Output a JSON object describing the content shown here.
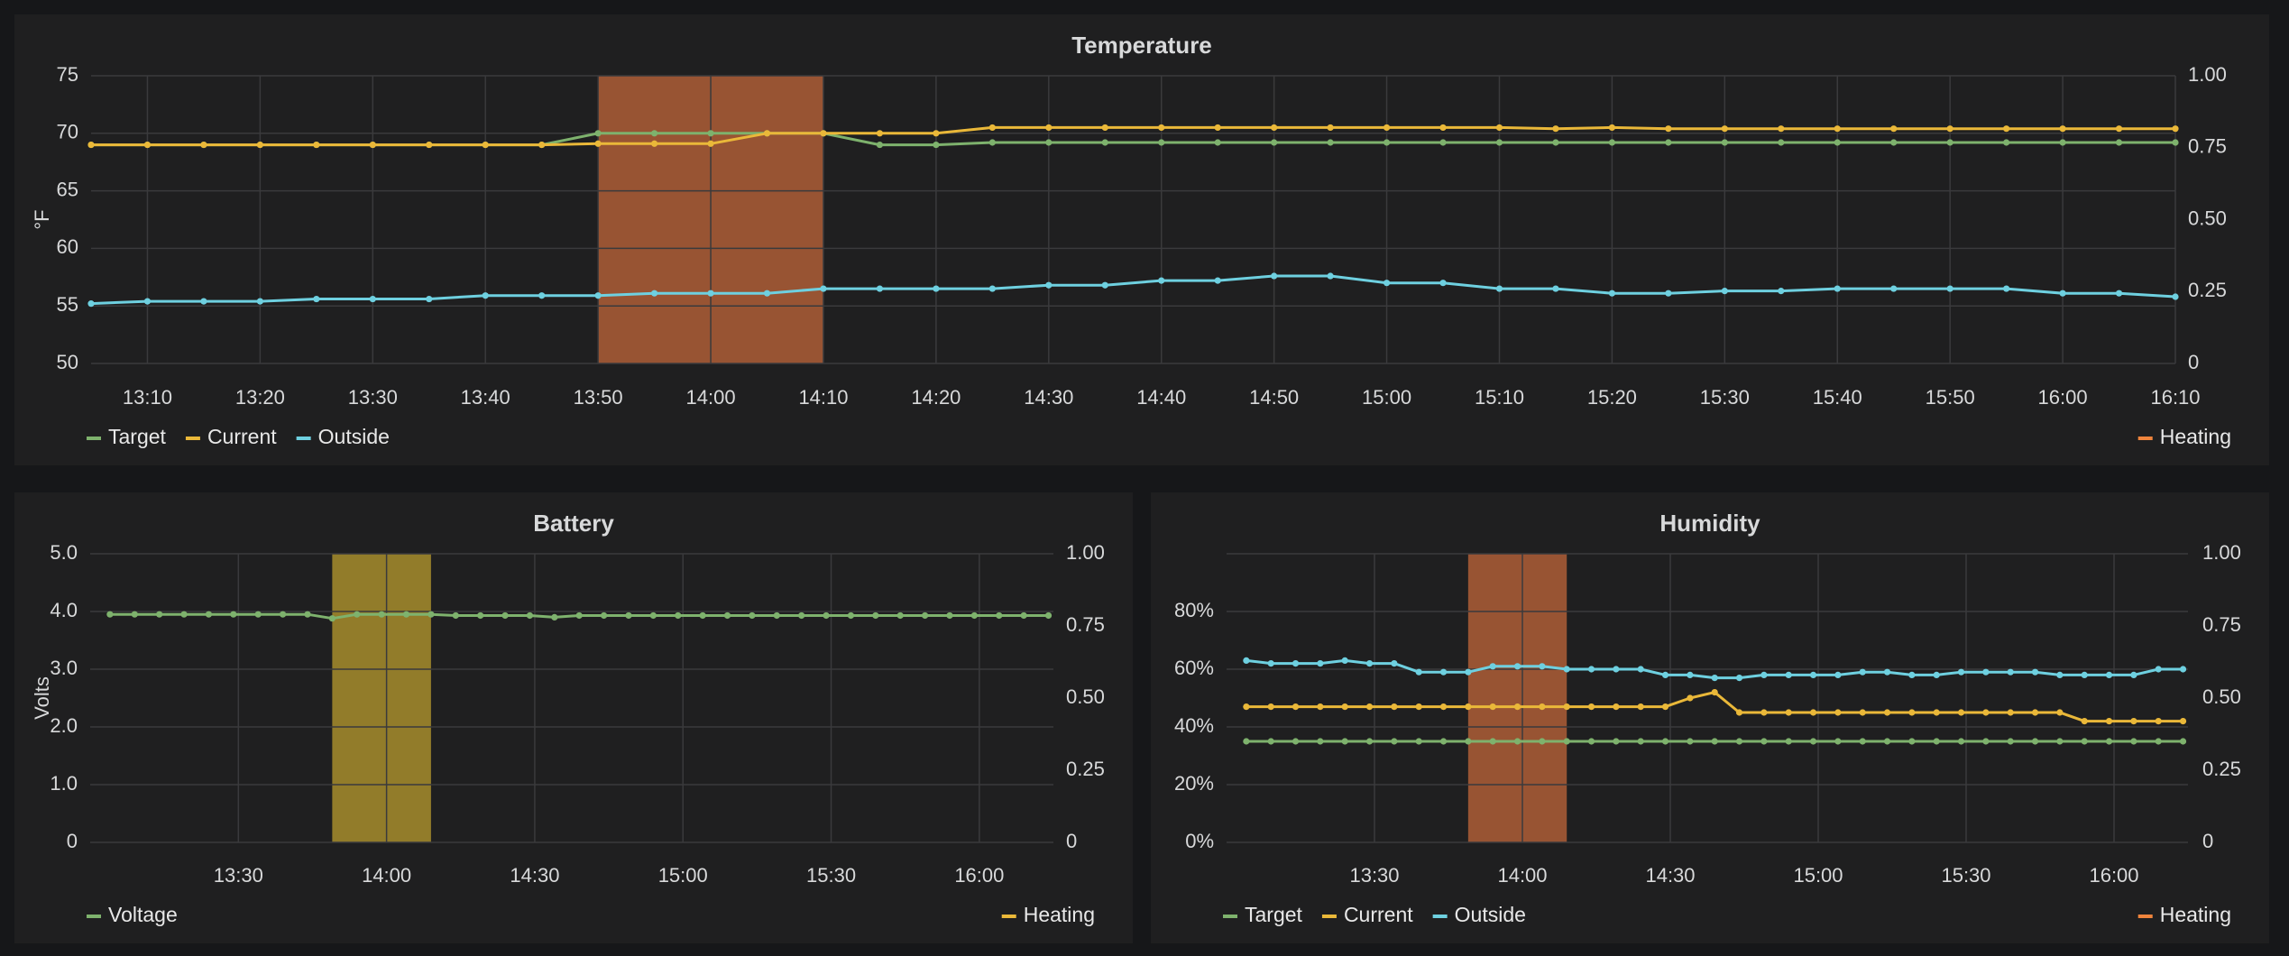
{
  "colors": {
    "target": "#7eb26d",
    "current": "#eab839",
    "outside": "#6ed0e0",
    "heating_temp": "#ef843c",
    "heating_batt": "#eab839",
    "heating_hum": "#ef843c",
    "band_temp": "#c8693a",
    "band_batt": "#bfa12e",
    "band_hum": "#c8693a"
  },
  "chart_data": [
    {
      "type": "line",
      "title": "Temperature",
      "ylabel": "°F",
      "ylim": [
        50,
        75
      ],
      "yticks": [
        "50",
        "55",
        "60",
        "65",
        "70",
        "75"
      ],
      "y2ticks": [
        "0",
        "0.25",
        "0.50",
        "0.75",
        "1.00"
      ],
      "xlim": [
        "13:05",
        "16:10"
      ],
      "xticks": [
        "13:10",
        "13:20",
        "13:30",
        "13:40",
        "13:50",
        "14:00",
        "14:10",
        "14:20",
        "14:30",
        "14:40",
        "14:50",
        "15:00",
        "15:10",
        "15:20",
        "15:30",
        "15:40",
        "15:50",
        "16:00",
        "16:10"
      ],
      "x": [
        "13:05",
        "13:10",
        "13:15",
        "13:20",
        "13:25",
        "13:30",
        "13:35",
        "13:40",
        "13:45",
        "13:50",
        "13:55",
        "14:00",
        "14:05",
        "14:10",
        "14:15",
        "14:20",
        "14:25",
        "14:30",
        "14:35",
        "14:40",
        "14:45",
        "14:50",
        "14:55",
        "15:00",
        "15:05",
        "15:10",
        "15:15",
        "15:20",
        "15:25",
        "15:30",
        "15:35",
        "15:40",
        "15:45",
        "15:50",
        "15:55",
        "16:00",
        "16:05",
        "16:10"
      ],
      "series": [
        {
          "name": "Target",
          "colorKey": "target",
          "values": [
            69,
            69,
            69,
            69,
            69,
            69,
            69,
            69,
            69,
            70,
            70,
            70,
            70,
            70,
            69,
            69,
            69.2,
            69.2,
            69.2,
            69.2,
            69.2,
            69.2,
            69.2,
            69.2,
            69.2,
            69.2,
            69.2,
            69.2,
            69.2,
            69.2,
            69.2,
            69.2,
            69.2,
            69.2,
            69.2,
            69.2,
            69.2,
            69.2
          ]
        },
        {
          "name": "Current",
          "colorKey": "current",
          "values": [
            69,
            69,
            69,
            69,
            69,
            69,
            69,
            69,
            69,
            69.1,
            69.1,
            69.1,
            70,
            70,
            70,
            70,
            70.5,
            70.5,
            70.5,
            70.5,
            70.5,
            70.5,
            70.5,
            70.5,
            70.5,
            70.5,
            70.4,
            70.5,
            70.4,
            70.4,
            70.4,
            70.4,
            70.4,
            70.4,
            70.4,
            70.4,
            70.4,
            70.4
          ]
        },
        {
          "name": "Outside",
          "colorKey": "outside",
          "values": [
            55.2,
            55.4,
            55.4,
            55.4,
            55.6,
            55.6,
            55.6,
            55.9,
            55.9,
            55.9,
            56.1,
            56.1,
            56.1,
            56.5,
            56.5,
            56.5,
            56.5,
            56.8,
            56.8,
            57.2,
            57.2,
            57.6,
            57.6,
            57,
            57,
            56.5,
            56.5,
            56.1,
            56.1,
            56.3,
            56.3,
            56.5,
            56.5,
            56.5,
            56.5,
            56.1,
            56.1,
            55.8
          ]
        }
      ],
      "heating": {
        "name": "Heating",
        "start": "13:50",
        "end": "14:10"
      }
    },
    {
      "type": "line",
      "title": "Battery",
      "ylabel": "Volts",
      "ylim": [
        0,
        5
      ],
      "yticks": [
        "0",
        "1.0",
        "2.0",
        "3.0",
        "4.0",
        "5.0"
      ],
      "y2ticks": [
        "0",
        "0.25",
        "0.50",
        "0.75",
        "1.00"
      ],
      "xlim": [
        "13:00",
        "16:15"
      ],
      "xticks": [
        "13:30",
        "14:00",
        "14:30",
        "15:00",
        "15:30",
        "16:00"
      ],
      "x": [
        "13:04",
        "13:09",
        "13:14",
        "13:19",
        "13:24",
        "13:29",
        "13:34",
        "13:39",
        "13:44",
        "13:49",
        "13:54",
        "13:59",
        "14:04",
        "14:09",
        "14:14",
        "14:19",
        "14:24",
        "14:29",
        "14:34",
        "14:39",
        "14:44",
        "14:49",
        "14:54",
        "14:59",
        "15:04",
        "15:09",
        "15:14",
        "15:19",
        "15:24",
        "15:29",
        "15:34",
        "15:39",
        "15:44",
        "15:49",
        "15:54",
        "15:59",
        "16:04",
        "16:09",
        "16:14"
      ],
      "series": [
        {
          "name": "Voltage",
          "colorKey": "target",
          "values": [
            3.95,
            3.95,
            3.95,
            3.95,
            3.95,
            3.95,
            3.95,
            3.95,
            3.95,
            3.88,
            3.95,
            3.95,
            3.95,
            3.95,
            3.93,
            3.93,
            3.93,
            3.93,
            3.9,
            3.93,
            3.93,
            3.93,
            3.93,
            3.93,
            3.93,
            3.93,
            3.93,
            3.93,
            3.93,
            3.93,
            3.93,
            3.93,
            3.93,
            3.93,
            3.93,
            3.93,
            3.93,
            3.93,
            3.93
          ]
        }
      ],
      "heating": {
        "name": "Heating",
        "start": "13:49",
        "end": "14:09"
      }
    },
    {
      "type": "line",
      "title": "Humidity",
      "ylabel": "",
      "ylim": [
        0,
        100
      ],
      "yticks": [
        "0%",
        "20%",
        "40%",
        "60%",
        "80%"
      ],
      "y2ticks": [
        "0",
        "0.25",
        "0.50",
        "0.75",
        "1.00"
      ],
      "xlim": [
        "13:00",
        "16:15"
      ],
      "xticks": [
        "13:30",
        "14:00",
        "14:30",
        "15:00",
        "15:30",
        "16:00"
      ],
      "x": [
        "13:04",
        "13:09",
        "13:14",
        "13:19",
        "13:24",
        "13:29",
        "13:34",
        "13:39",
        "13:44",
        "13:49",
        "13:54",
        "13:59",
        "14:04",
        "14:09",
        "14:14",
        "14:19",
        "14:24",
        "14:29",
        "14:34",
        "14:39",
        "14:44",
        "14:49",
        "14:54",
        "14:59",
        "15:04",
        "15:09",
        "15:14",
        "15:19",
        "15:24",
        "15:29",
        "15:34",
        "15:39",
        "15:44",
        "15:49",
        "15:54",
        "15:59",
        "16:04",
        "16:09",
        "16:14"
      ],
      "series": [
        {
          "name": "Target",
          "colorKey": "target",
          "values": [
            35,
            35,
            35,
            35,
            35,
            35,
            35,
            35,
            35,
            35,
            35,
            35,
            35,
            35,
            35,
            35,
            35,
            35,
            35,
            35,
            35,
            35,
            35,
            35,
            35,
            35,
            35,
            35,
            35,
            35,
            35,
            35,
            35,
            35,
            35,
            35,
            35,
            35,
            35
          ]
        },
        {
          "name": "Current",
          "colorKey": "current",
          "values": [
            47,
            47,
            47,
            47,
            47,
            47,
            47,
            47,
            47,
            47,
            47,
            47,
            47,
            47,
            47,
            47,
            47,
            47,
            50,
            52,
            45,
            45,
            45,
            45,
            45,
            45,
            45,
            45,
            45,
            45,
            45,
            45,
            45,
            45,
            42,
            42,
            42,
            42,
            42
          ]
        },
        {
          "name": "Outside",
          "colorKey": "outside",
          "values": [
            63,
            62,
            62,
            62,
            63,
            62,
            62,
            59,
            59,
            59,
            61,
            61,
            61,
            60,
            60,
            60,
            60,
            58,
            58,
            57,
            57,
            58,
            58,
            58,
            58,
            59,
            59,
            58,
            58,
            59,
            59,
            59,
            59,
            58,
            58,
            58,
            58,
            60,
            60
          ]
        }
      ],
      "heating": {
        "name": "Heating",
        "start": "13:49",
        "end": "14:09"
      }
    }
  ]
}
